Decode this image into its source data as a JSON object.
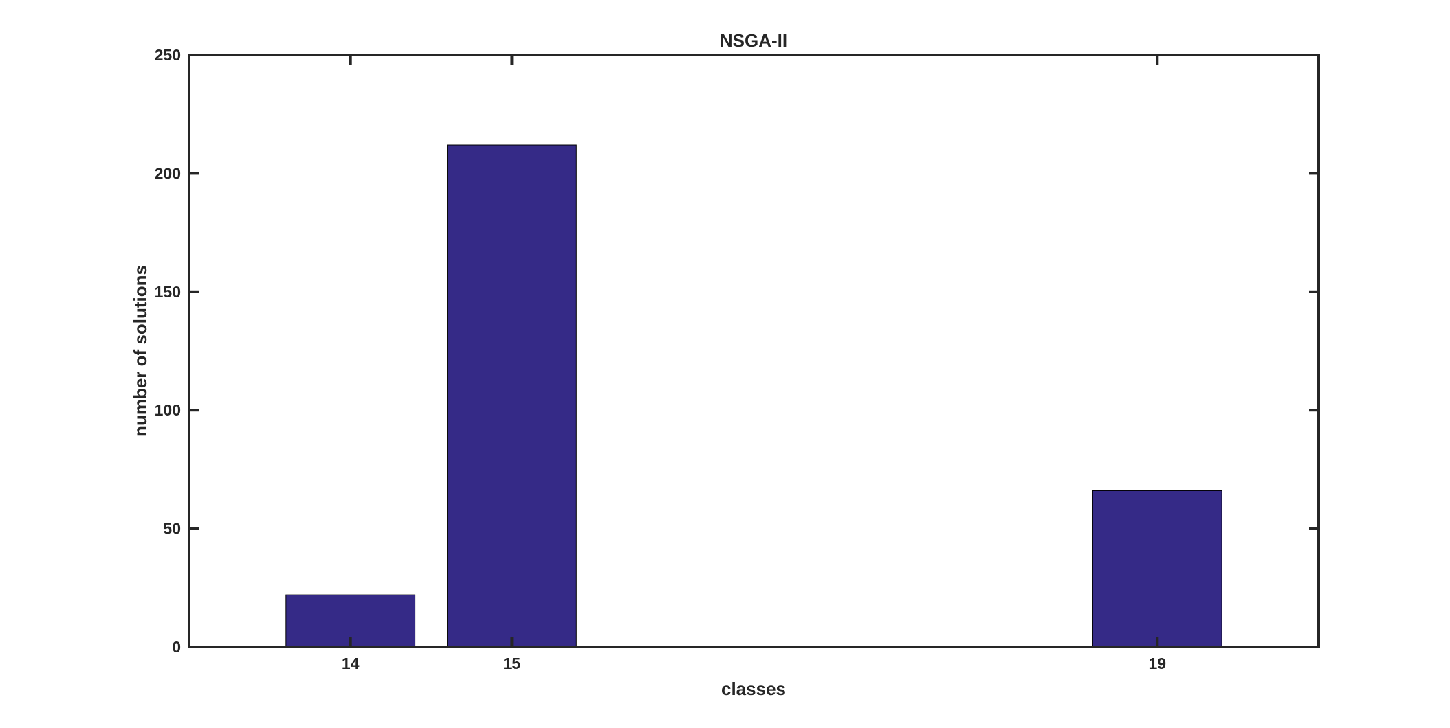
{
  "chart_data": {
    "type": "bar",
    "title": "NSGA-II",
    "xlabel": "classes",
    "ylabel": "number of solutions",
    "categories": [
      "14",
      "15",
      "19"
    ],
    "x": [
      14,
      15,
      19
    ],
    "values": [
      22,
      212,
      66
    ],
    "xlim": [
      13,
      20
    ],
    "ylim": [
      0,
      250
    ],
    "yticks": [
      0,
      50,
      100,
      150,
      200,
      250
    ],
    "xticks": [
      14,
      15,
      19
    ],
    "grid": false,
    "legend": "none",
    "bar_color": "#352a87",
    "axis_color": "#262626"
  }
}
